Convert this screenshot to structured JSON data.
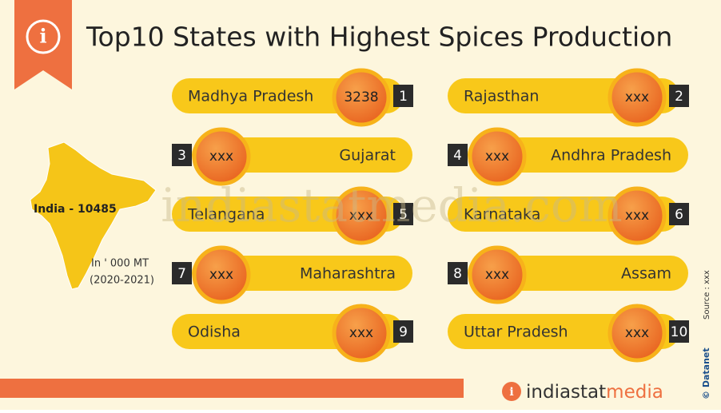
{
  "header": {
    "title": "Top10 States with Highest Spices Production"
  },
  "india": {
    "label": "India - 10485",
    "unit": "In ' 000 MT",
    "period": "(2020-2021)"
  },
  "states": [
    {
      "rank": 1,
      "name": "Madhya Pradesh",
      "value": "3238"
    },
    {
      "rank": 2,
      "name": "Rajasthan",
      "value": "xxx"
    },
    {
      "rank": 3,
      "name": "Gujarat",
      "value": "xxx"
    },
    {
      "rank": 4,
      "name": "Andhra Pradesh",
      "value": "xxx"
    },
    {
      "rank": 5,
      "name": "Telangana",
      "value": "xxx"
    },
    {
      "rank": 6,
      "name": "Karnataka",
      "value": "xxx"
    },
    {
      "rank": 7,
      "name": "Maharashtra",
      "value": "xxx"
    },
    {
      "rank": 8,
      "name": "Assam",
      "value": "xxx"
    },
    {
      "rank": 9,
      "name": "Odisha",
      "value": "xxx"
    },
    {
      "rank": 10,
      "name": "Uttar Pradesh",
      "value": "xxx"
    }
  ],
  "watermark": "indiastatmedia.com",
  "footer": {
    "brand_main": "indiastat",
    "brand_accent": "media",
    "source": "Source : xxx",
    "copyright": "© Datanet"
  }
}
